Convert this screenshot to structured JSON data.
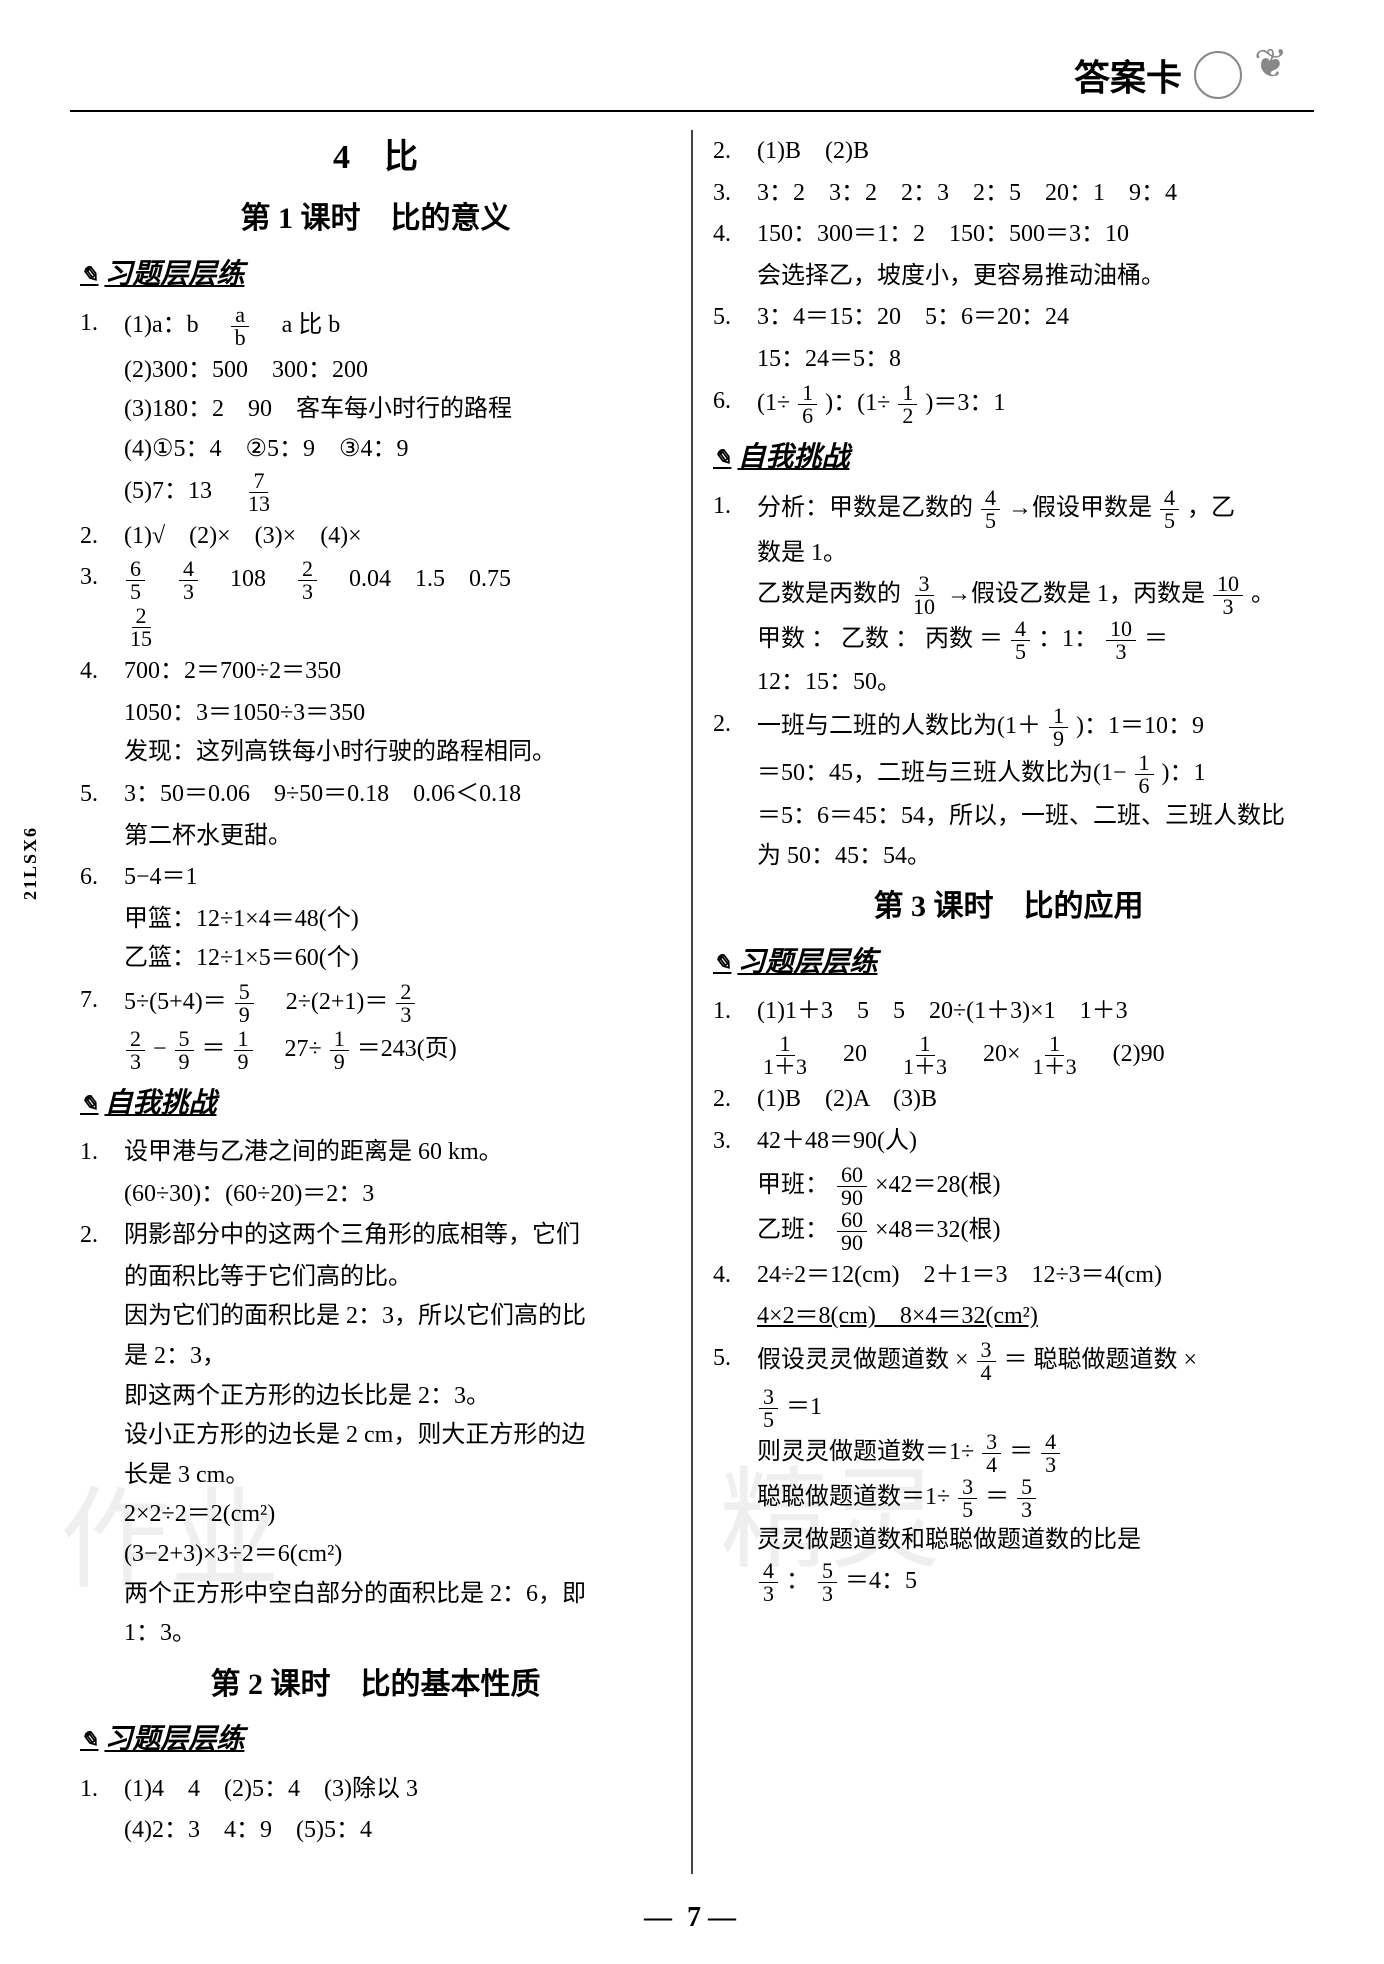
{
  "header": {
    "title": "答案卡"
  },
  "side_label": "21LSX6",
  "page_number": "7",
  "chapter": {
    "num": "4",
    "title": "比"
  },
  "lessons": {
    "l1": "第 1 课时　比的意义",
    "l2": "第 2 课时　比的基本性质",
    "l3": "第 3 课时　比的应用"
  },
  "sections": {
    "practice": "习题层层练",
    "challenge": "自我挑战"
  },
  "col_left": {
    "p1": {
      "n": "1.",
      "a": "(1)a：b",
      "a2": "a 比 b",
      "b": "(2)300：500　300：200",
      "c": "(3)180：2　90　客车每小时行的路程",
      "d": "(4)①5：4　②5：9　③4：9",
      "e": "(5)7：13"
    },
    "p2": {
      "n": "2.",
      "a": "(1)√　(2)×　(3)×　(4)×"
    },
    "p3": {
      "n": "3.",
      "a": "　108　",
      "b": "　0.04　1.5　0.75"
    },
    "p4": {
      "n": "4.",
      "a": "700：2＝700÷2＝350",
      "b": "1050：3＝1050÷3＝350",
      "c": "发现：这列高铁每小时行驶的路程相同。"
    },
    "p5": {
      "n": "5.",
      "a": "3：50＝0.06　9÷50＝0.18　0.06＜0.18",
      "b": "第二杯水更甜。"
    },
    "p6": {
      "n": "6.",
      "a": "5−4＝1",
      "b": "甲篮：12÷1×4＝48(个)",
      "c": "乙篮：12÷1×5＝60(个)"
    },
    "p7": {
      "n": "7.",
      "a": "5÷(5+4)＝",
      "b": "　2÷(2+1)＝",
      "c": "−",
      "d": "＝",
      "e": "　27÷",
      "f": "＝243(页)"
    },
    "c1": {
      "n": "1.",
      "a": "设甲港与乙港之间的距离是 60 km。",
      "b": "(60÷30)：(60÷20)＝2：3"
    },
    "c2": {
      "n": "2.",
      "a": "阴影部分中的这两个三角形的底相等，它们",
      "b": "的面积比等于它们高的比。",
      "c": "因为它们的面积比是 2：3，所以它们高的比",
      "d": "是 2：3，",
      "e": "即这两个正方形的边长比是 2：3。",
      "f": "设小正方形的边长是 2 cm，则大正方形的边",
      "g": "长是 3 cm。",
      "h": "2×2÷2＝2(cm²)",
      "i": "(3−2+3)×3÷2＝6(cm²)",
      "j": "两个正方形中空白部分的面积比是 2：6，即",
      "k": "1：3。"
    },
    "l2p1": {
      "n": "1.",
      "a": "(1)4　4　(2)5：4　(3)除以 3",
      "b": "(4)2：3　4：9　(5)5：4"
    }
  },
  "col_right": {
    "p2": {
      "n": "2.",
      "a": "(1)B　(2)B"
    },
    "p3": {
      "n": "3.",
      "a": "3：2　3：2　2：3　2：5　20：1　9：4"
    },
    "p4": {
      "n": "4.",
      "a": "150：300＝1：2　150：500＝3：10",
      "b": "会选择乙，坡度小，更容易推动油桶。"
    },
    "p5": {
      "n": "5.",
      "a": "3：4＝15：20　5：6＝20：24",
      "b": "15：24＝5：8"
    },
    "p6": {
      "n": "6.",
      "a": "(1÷",
      "b": ")：(1÷",
      "c": ")＝3：1"
    },
    "c1": {
      "n": "1.",
      "a": "分析：甲数是乙数的",
      "b": "→假设甲数是",
      "c": "，乙",
      "d": "数是 1。",
      "e": "乙数是丙数的",
      "f": "→假设乙数是 1，丙数是",
      "g": "。",
      "h": "甲数 ： 乙数 ： 丙数 ＝",
      "i": "：1：",
      "j": "＝",
      "k": "12：15：50。"
    },
    "c2": {
      "n": "2.",
      "a": "一班与二班的人数比为(1＋",
      "b": ")：1＝10：9",
      "c": "＝50：45，二班与三班人数比为(1−",
      "d": ")：1",
      "e": "＝5：6＝45：54，所以，一班、二班、三班人数比",
      "f": "为 50：45：54。"
    },
    "l3p1": {
      "n": "1.",
      "a": "(1)1＋3　5　5　20÷(1＋3)×1　1＋3",
      "b": "　20　",
      "c": "　20×",
      "d": "　(2)90"
    },
    "l3p2": {
      "n": "2.",
      "a": "(1)B　(2)A　(3)B"
    },
    "l3p3": {
      "n": "3.",
      "a": "42＋48＝90(人)",
      "b": "甲班：",
      "c": "×42＝28(根)",
      "d": "乙班：",
      "e": "×48＝32(根)"
    },
    "l3p4": {
      "n": "4.",
      "a": "24÷2＝12(cm)　2＋1＝3　12÷3＝4(cm)",
      "b": "4×2＝8(cm)　8×4＝32(cm²)"
    },
    "l3p5": {
      "n": "5.",
      "a": "假设灵灵做题道数 ×",
      "b": "＝ 聪聪做题道数 ×",
      "c": "＝1",
      "d": "则灵灵做题道数＝1÷",
      "e": "＝",
      "f": "聪聪做题道数＝1÷",
      "g": "＝",
      "h": "灵灵做题道数和聪聪做题道数的比是",
      "i": "：",
      "j": "＝4：5"
    }
  },
  "fracs": {
    "a_b": {
      "n": "a",
      "d": "b"
    },
    "7_13": {
      "n": "7",
      "d": "13"
    },
    "6_5": {
      "n": "6",
      "d": "5"
    },
    "4_3": {
      "n": "4",
      "d": "3"
    },
    "2_3": {
      "n": "2",
      "d": "3"
    },
    "2_15": {
      "n": "2",
      "d": "15"
    },
    "5_9": {
      "n": "5",
      "d": "9"
    },
    "1_9": {
      "n": "1",
      "d": "9"
    },
    "1_6": {
      "n": "1",
      "d": "6"
    },
    "1_2": {
      "n": "1",
      "d": "2"
    },
    "4_5": {
      "n": "4",
      "d": "5"
    },
    "3_10": {
      "n": "3",
      "d": "10"
    },
    "10_3": {
      "n": "10",
      "d": "3"
    },
    "3_4": {
      "n": "3",
      "d": "4"
    },
    "3_5": {
      "n": "3",
      "d": "5"
    },
    "5_3": {
      "n": "5",
      "d": "3"
    },
    "60_90": {
      "n": "60",
      "d": "90"
    },
    "1_1p3": {
      "n": "1",
      "d": "1＋3"
    }
  }
}
